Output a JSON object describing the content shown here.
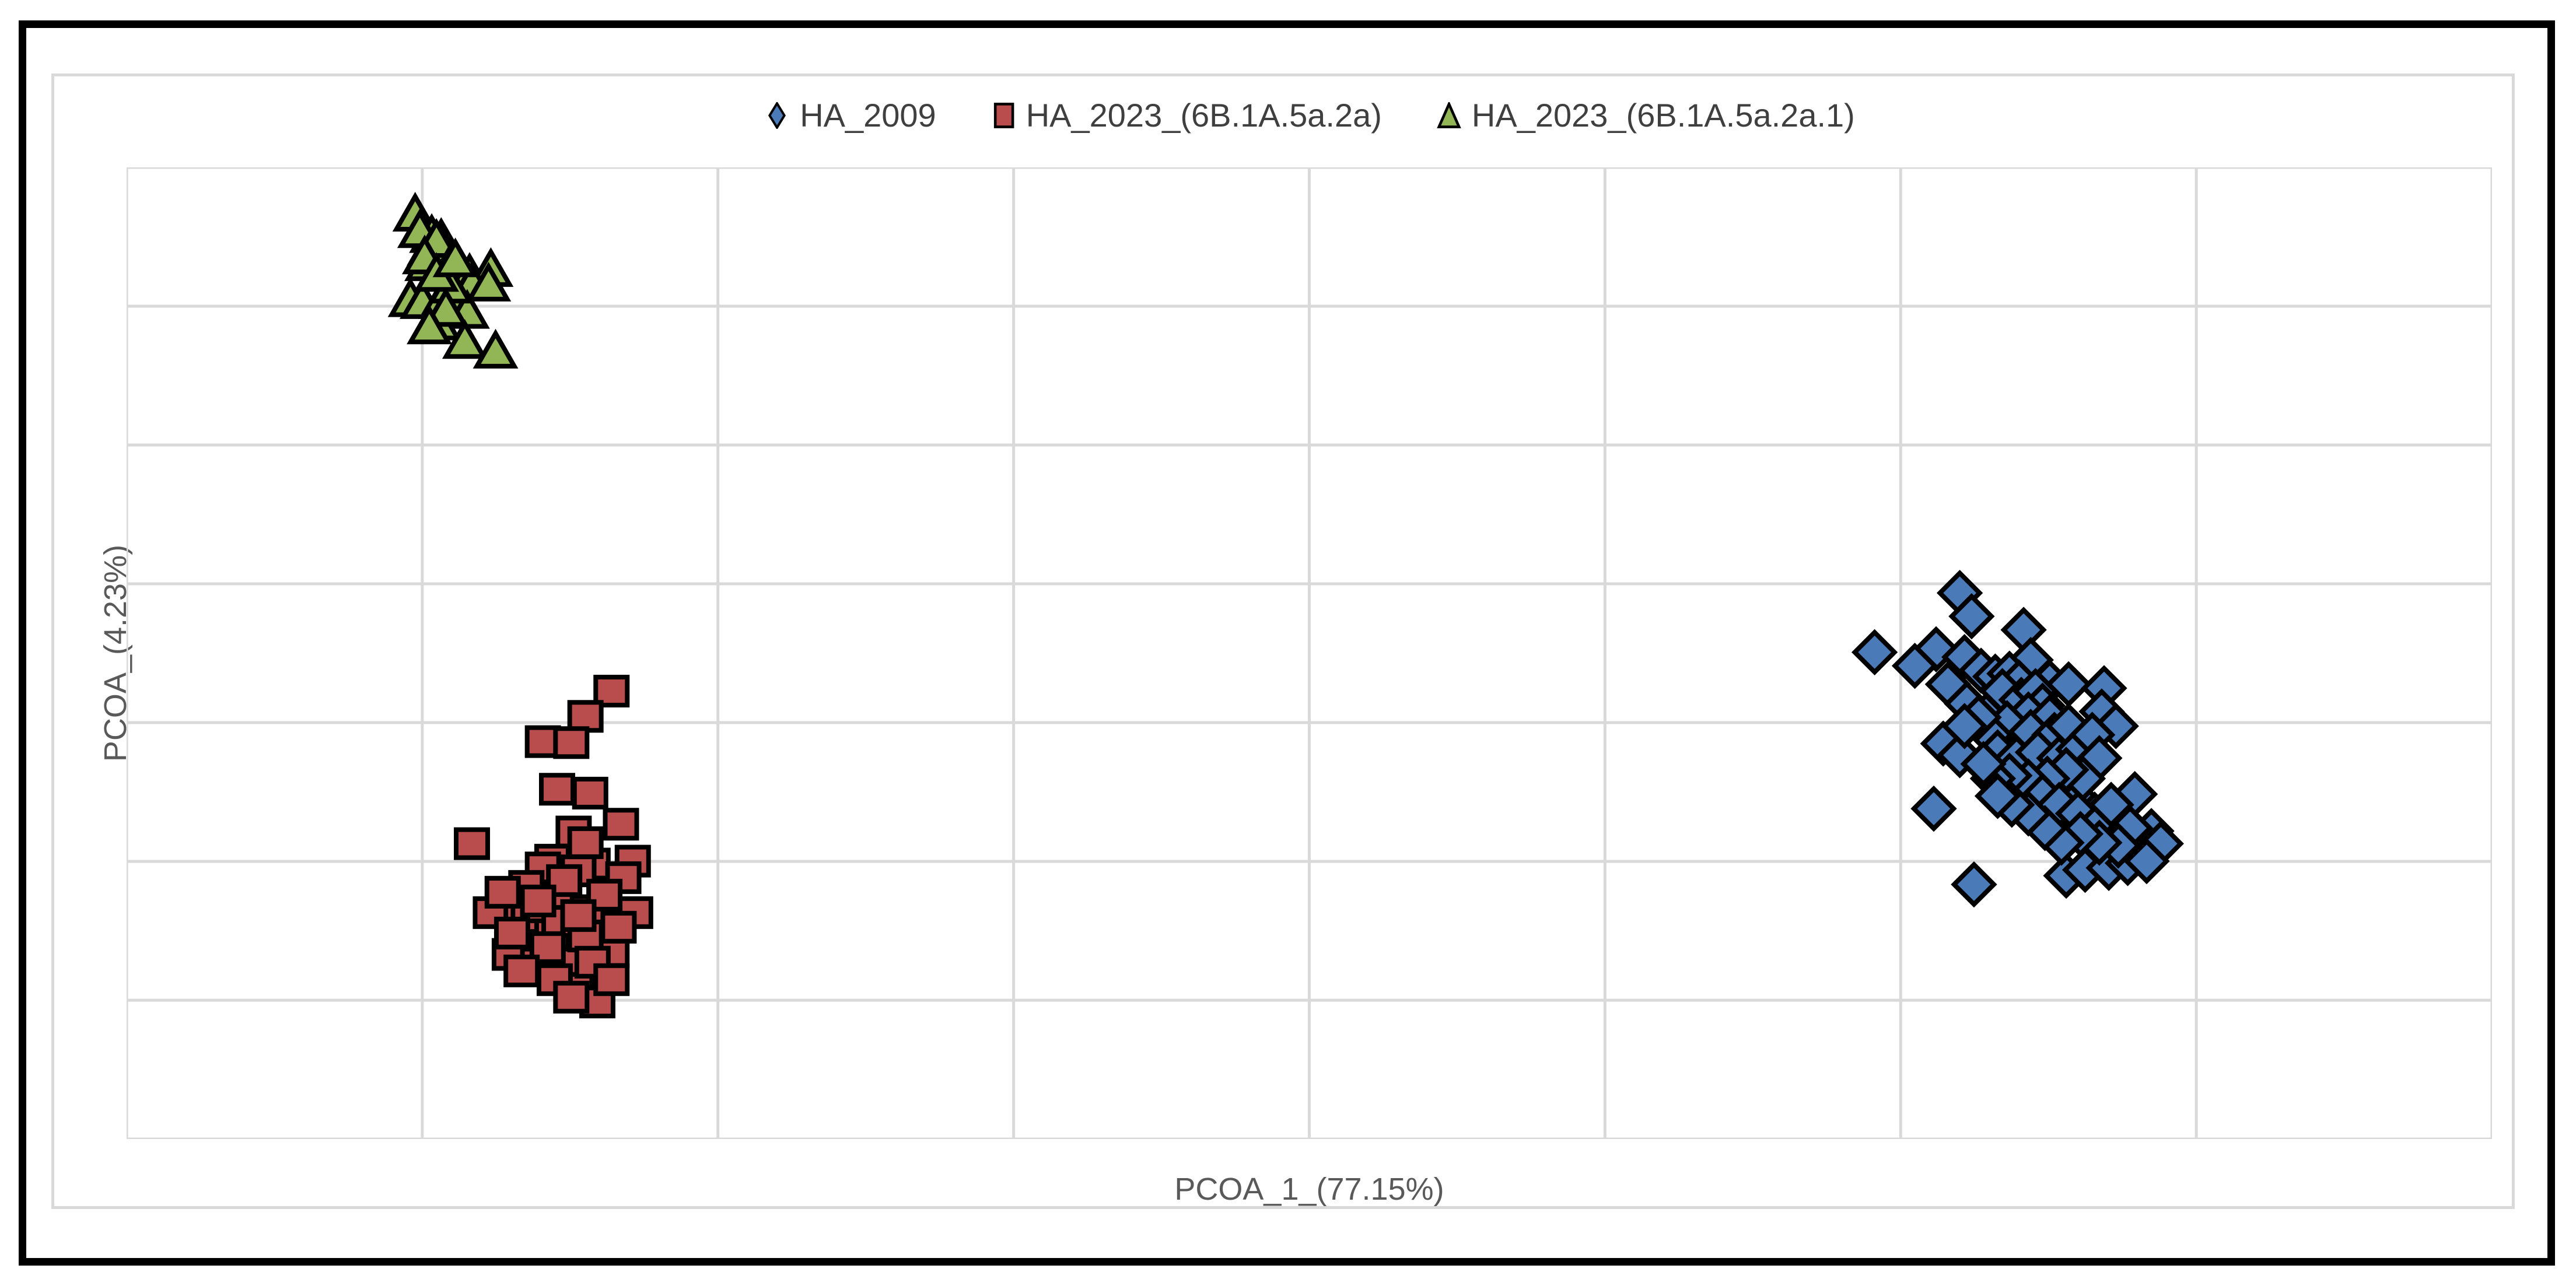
{
  "chart": {
    "legend": [
      {
        "label": "HA_2009",
        "marker": "diamond",
        "color": "#4a7ab8"
      },
      {
        "label": "HA_2023_(6B.1A.5a.2a)",
        "marker": "square",
        "color": "#b94c4c"
      },
      {
        "label": "HA_2023_(6B.1A.5a.2a.1)",
        "marker": "triangle",
        "color": "#92b556"
      }
    ],
    "x_axis_label": "PCOA_1_(77.15%)",
    "y_axis_label": "PCOA_(4.23%)"
  },
  "chart_data": {
    "type": "scatter",
    "title": "",
    "xlabel": "PCOA_1_(77.15%)",
    "ylabel": "PCOA_(4.23%)",
    "tick_labels": "none shown on either axis",
    "coordinates": "normalized plot-area fractions: x 0=left to 1=right, y 0=bottom to 1=top",
    "grid": {
      "x_divisions": 8,
      "y_divisions": 7,
      "color": "#d9d9d9",
      "gridlines_on": true
    },
    "legend_position": "top-center",
    "marker_outline": "#000000",
    "series": [
      {
        "name": "HA_2009",
        "marker": "diamond",
        "fill": "#4a7ab8",
        "points": [
          [
            0.775,
            0.562
          ],
          [
            0.78,
            0.538
          ],
          [
            0.739,
            0.501
          ],
          [
            0.765,
            0.504
          ],
          [
            0.756,
            0.487
          ],
          [
            0.777,
            0.496
          ],
          [
            0.802,
            0.524
          ],
          [
            0.805,
            0.493
          ],
          [
            0.813,
            0.47
          ],
          [
            0.821,
            0.468
          ],
          [
            0.836,
            0.464
          ],
          [
            0.77,
            0.468
          ],
          [
            0.778,
            0.448
          ],
          [
            0.787,
            0.438
          ],
          [
            0.795,
            0.455
          ],
          [
            0.768,
            0.407
          ],
          [
            0.775,
            0.395
          ],
          [
            0.788,
            0.392
          ],
          [
            0.796,
            0.397
          ],
          [
            0.806,
            0.38
          ],
          [
            0.817,
            0.362
          ],
          [
            0.826,
            0.382
          ],
          [
            0.835,
            0.44
          ],
          [
            0.841,
            0.425
          ],
          [
            0.764,
            0.34
          ],
          [
            0.825,
            0.349
          ],
          [
            0.832,
            0.334
          ],
          [
            0.84,
            0.322
          ],
          [
            0.849,
            0.355
          ],
          [
            0.856,
            0.317
          ],
          [
            0.86,
            0.304
          ],
          [
            0.781,
            0.262
          ],
          [
            0.82,
            0.271
          ],
          [
            0.828,
            0.277
          ],
          [
            0.838,
            0.279
          ],
          [
            0.846,
            0.284
          ],
          [
            0.854,
            0.286
          ],
          [
            0.784,
            0.482
          ],
          [
            0.79,
            0.476
          ],
          [
            0.796,
            0.479
          ],
          [
            0.8,
            0.47
          ],
          [
            0.793,
            0.461
          ],
          [
            0.801,
            0.452
          ],
          [
            0.807,
            0.461
          ],
          [
            0.81,
            0.446
          ],
          [
            0.804,
            0.437
          ],
          [
            0.813,
            0.434
          ],
          [
            0.795,
            0.428
          ],
          [
            0.805,
            0.419
          ],
          [
            0.815,
            0.416
          ],
          [
            0.821,
            0.425
          ],
          [
            0.788,
            0.416
          ],
          [
            0.783,
            0.434
          ],
          [
            0.777,
            0.425
          ],
          [
            0.791,
            0.398
          ],
          [
            0.799,
            0.392
          ],
          [
            0.808,
            0.398
          ],
          [
            0.817,
            0.392
          ],
          [
            0.825,
            0.401
          ],
          [
            0.831,
            0.416
          ],
          [
            0.834,
            0.392
          ],
          [
            0.827,
            0.371
          ],
          [
            0.82,
            0.38
          ],
          [
            0.812,
            0.371
          ],
          [
            0.804,
            0.368
          ],
          [
            0.796,
            0.374
          ],
          [
            0.789,
            0.371
          ],
          [
            0.81,
            0.353
          ],
          [
            0.817,
            0.344
          ],
          [
            0.825,
            0.335
          ],
          [
            0.832,
            0.32
          ],
          [
            0.839,
            0.344
          ],
          [
            0.847,
            0.32
          ],
          [
            0.842,
            0.302
          ],
          [
            0.834,
            0.305
          ],
          [
            0.826,
            0.314
          ],
          [
            0.818,
            0.305
          ],
          [
            0.811,
            0.32
          ],
          [
            0.804,
            0.335
          ],
          [
            0.797,
            0.344
          ],
          [
            0.791,
            0.353
          ],
          [
            0.785,
            0.386
          ]
        ]
      },
      {
        "name": "HA_2023_(6B.1A.5a.2a)",
        "marker": "square",
        "fill": "#b94c4c",
        "points": [
          [
            0.205,
            0.461
          ],
          [
            0.194,
            0.435
          ],
          [
            0.176,
            0.409
          ],
          [
            0.188,
            0.408
          ],
          [
            0.182,
            0.36
          ],
          [
            0.196,
            0.356
          ],
          [
            0.189,
            0.316
          ],
          [
            0.209,
            0.324
          ],
          [
            0.146,
            0.304
          ],
          [
            0.18,
            0.287
          ],
          [
            0.197,
            0.283
          ],
          [
            0.214,
            0.286
          ],
          [
            0.176,
            0.279
          ],
          [
            0.191,
            0.276
          ],
          [
            0.21,
            0.269
          ],
          [
            0.184,
            0.247
          ],
          [
            0.154,
            0.233
          ],
          [
            0.167,
            0.228
          ],
          [
            0.195,
            0.235
          ],
          [
            0.215,
            0.233
          ],
          [
            0.201,
            0.224
          ],
          [
            0.18,
            0.212
          ],
          [
            0.162,
            0.19
          ],
          [
            0.174,
            0.181
          ],
          [
            0.189,
            0.181
          ],
          [
            0.205,
            0.193
          ],
          [
            0.19,
            0.155
          ],
          [
            0.199,
            0.141
          ],
          [
            0.169,
            0.26
          ],
          [
            0.185,
            0.266
          ],
          [
            0.202,
            0.251
          ],
          [
            0.17,
            0.239
          ],
          [
            0.183,
            0.224
          ],
          [
            0.194,
            0.209
          ],
          [
            0.178,
            0.197
          ],
          [
            0.163,
            0.212
          ],
          [
            0.208,
            0.218
          ],
          [
            0.191,
            0.23
          ],
          [
            0.174,
            0.245
          ],
          [
            0.159,
            0.254
          ],
          [
            0.197,
            0.182
          ],
          [
            0.181,
            0.164
          ],
          [
            0.167,
            0.173
          ],
          [
            0.205,
            0.164
          ],
          [
            0.188,
            0.146
          ],
          [
            0.194,
            0.305
          ]
        ]
      },
      {
        "name": "HA_2023_(6B.1A.5a.2a.1)",
        "marker": "triangle",
        "fill": "#92b556",
        "points": [
          [
            0.122,
            0.952
          ],
          [
            0.129,
            0.93
          ],
          [
            0.133,
            0.926
          ],
          [
            0.128,
            0.917
          ],
          [
            0.124,
            0.935
          ],
          [
            0.131,
            0.925
          ],
          [
            0.127,
            0.901
          ],
          [
            0.136,
            0.896
          ],
          [
            0.145,
            0.89
          ],
          [
            0.154,
            0.895
          ],
          [
            0.146,
            0.881
          ],
          [
            0.153,
            0.88
          ],
          [
            0.12,
            0.864
          ],
          [
            0.125,
            0.862
          ],
          [
            0.133,
            0.862
          ],
          [
            0.141,
            0.856
          ],
          [
            0.144,
            0.852
          ],
          [
            0.132,
            0.84
          ],
          [
            0.143,
            0.821
          ],
          [
            0.156,
            0.811
          ],
          [
            0.126,
            0.908
          ],
          [
            0.137,
            0.878
          ],
          [
            0.131,
            0.89
          ],
          [
            0.139,
            0.905
          ],
          [
            0.135,
            0.854
          ],
          [
            0.128,
            0.836
          ]
        ]
      }
    ]
  }
}
